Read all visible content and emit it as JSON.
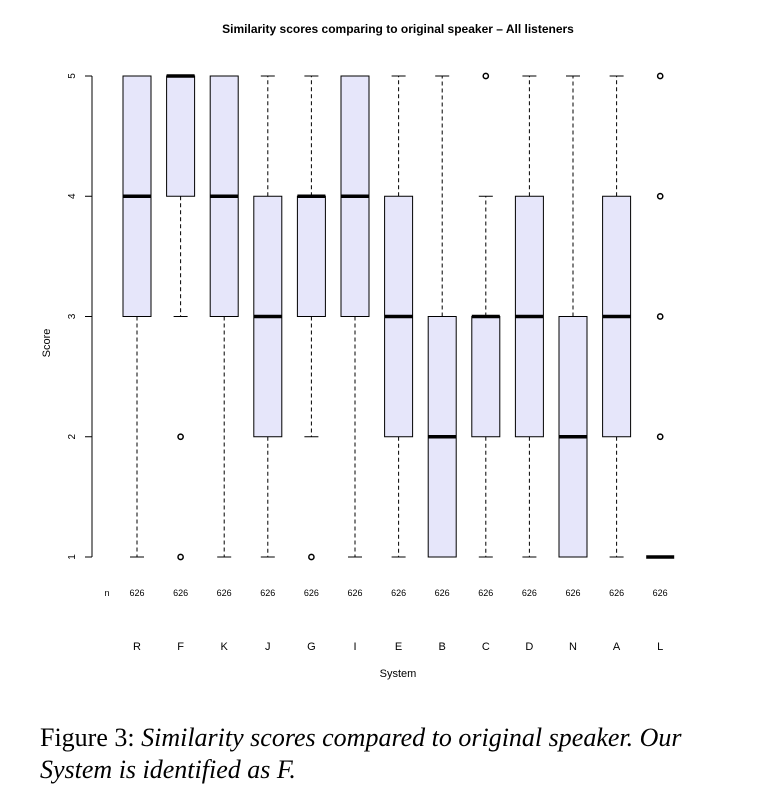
{
  "chart_data": {
    "type": "boxplot",
    "title": "Similarity scores comparing to original speaker – All listeners",
    "xlabel": "System",
    "ylabel": "Score",
    "ylim": [
      1,
      5
    ],
    "yticks": [
      "1",
      "2",
      "3",
      "4",
      "5"
    ],
    "n_label": "n",
    "categories": [
      "R",
      "F",
      "K",
      "J",
      "G",
      "I",
      "E",
      "B",
      "C",
      "D",
      "N",
      "A",
      "L"
    ],
    "n": [
      "626",
      "626",
      "626",
      "626",
      "626",
      "626",
      "626",
      "626",
      "626",
      "626",
      "626",
      "626",
      "626"
    ],
    "boxes": [
      {
        "name": "R",
        "whisker_low": 1,
        "q1": 3,
        "median": 4,
        "q3": 5,
        "whisker_high": 5,
        "outliers": []
      },
      {
        "name": "F",
        "whisker_low": 3,
        "q1": 4,
        "median": 5,
        "q3": 5,
        "whisker_high": 5,
        "outliers": [
          2,
          1
        ]
      },
      {
        "name": "K",
        "whisker_low": 1,
        "q1": 3,
        "median": 4,
        "q3": 5,
        "whisker_high": 5,
        "outliers": []
      },
      {
        "name": "J",
        "whisker_low": 1,
        "q1": 2,
        "median": 3,
        "q3": 4,
        "whisker_high": 5,
        "outliers": []
      },
      {
        "name": "G",
        "whisker_low": 2,
        "q1": 3,
        "median": 4,
        "q3": 4,
        "whisker_high": 5,
        "outliers": [
          1
        ]
      },
      {
        "name": "I",
        "whisker_low": 1,
        "q1": 3,
        "median": 4,
        "q3": 5,
        "whisker_high": 5,
        "outliers": []
      },
      {
        "name": "E",
        "whisker_low": 1,
        "q1": 2,
        "median": 3,
        "q3": 4,
        "whisker_high": 5,
        "outliers": []
      },
      {
        "name": "B",
        "whisker_low": 1,
        "q1": 1,
        "median": 2,
        "q3": 3,
        "whisker_high": 5,
        "outliers": []
      },
      {
        "name": "C",
        "whisker_low": 1,
        "q1": 2,
        "median": 3,
        "q3": 3,
        "whisker_high": 4,
        "outliers": [
          5
        ]
      },
      {
        "name": "D",
        "whisker_low": 1,
        "q1": 2,
        "median": 3,
        "q3": 4,
        "whisker_high": 5,
        "outliers": []
      },
      {
        "name": "N",
        "whisker_low": 1,
        "q1": 1,
        "median": 2,
        "q3": 3,
        "whisker_high": 5,
        "outliers": []
      },
      {
        "name": "A",
        "whisker_low": 1,
        "q1": 2,
        "median": 3,
        "q3": 4,
        "whisker_high": 5,
        "outliers": []
      },
      {
        "name": "L",
        "whisker_low": 1,
        "q1": 1,
        "median": 1,
        "q3": 1,
        "whisker_high": 1,
        "outliers": [
          2,
          3,
          4,
          5
        ]
      }
    ],
    "colors": {
      "box_fill": "#e6e6fa",
      "stroke": "#000000"
    }
  },
  "caption": {
    "label": "Figure 3:",
    "text": "Similarity scores compared to original speaker.  Our System is identified as F."
  }
}
